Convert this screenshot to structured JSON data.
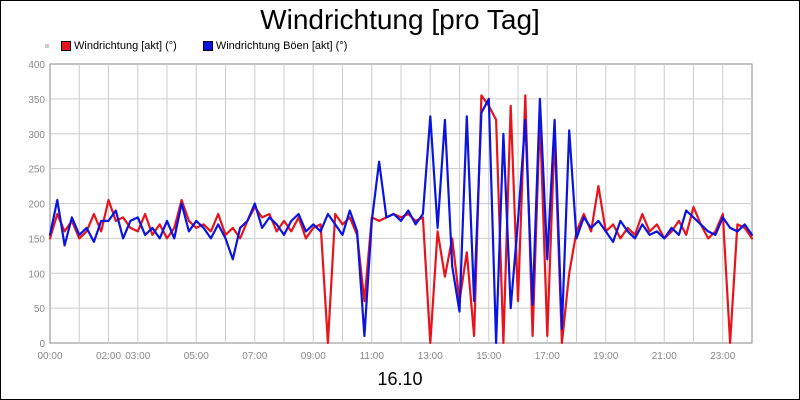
{
  "title": "Windrichtung [pro Tag]",
  "date_label": "16.10",
  "legend": [
    {
      "label": "Windrichtung [akt] (°)",
      "color": "#e8141c"
    },
    {
      "label": "Windrichtung Böen [akt] (°)",
      "color": "#0a14e0"
    }
  ],
  "chart_data": {
    "type": "line",
    "title": "Windrichtung [pro Tag]",
    "xlabel": "",
    "ylabel": "",
    "ylim": [
      0,
      400
    ],
    "yticks": [
      0,
      50,
      100,
      150,
      200,
      250,
      300,
      350,
      400
    ],
    "xlim_hours": [
      0,
      24
    ],
    "xticks": [
      {
        "h": 0,
        "label": "00:00"
      },
      {
        "h": 2,
        "label": "02:00"
      },
      {
        "h": 3,
        "label": "03:00"
      },
      {
        "h": 5,
        "label": "05:00"
      },
      {
        "h": 7,
        "label": "07:00"
      },
      {
        "h": 9,
        "label": "09:00"
      },
      {
        "h": 11,
        "label": "11:00"
      },
      {
        "h": 13,
        "label": "13:00"
      },
      {
        "h": 15,
        "label": "15:00"
      },
      {
        "h": 17,
        "label": "17:00"
      },
      {
        "h": 19,
        "label": "19:00"
      },
      {
        "h": 21,
        "label": "21:00"
      },
      {
        "h": 23,
        "label": "23:00"
      }
    ],
    "grid": true,
    "legend_position": "top-left",
    "series": [
      {
        "name": "Windrichtung [akt] (°)",
        "color": "#e8141c",
        "points": [
          [
            0.0,
            150
          ],
          [
            0.25,
            185
          ],
          [
            0.5,
            160
          ],
          [
            0.75,
            175
          ],
          [
            1.0,
            150
          ],
          [
            1.25,
            160
          ],
          [
            1.5,
            185
          ],
          [
            1.75,
            160
          ],
          [
            2.0,
            205
          ],
          [
            2.25,
            175
          ],
          [
            2.5,
            180
          ],
          [
            2.75,
            165
          ],
          [
            3.0,
            160
          ],
          [
            3.25,
            185
          ],
          [
            3.5,
            155
          ],
          [
            3.75,
            170
          ],
          [
            4.0,
            150
          ],
          [
            4.25,
            165
          ],
          [
            4.5,
            205
          ],
          [
            4.75,
            175
          ],
          [
            5.0,
            165
          ],
          [
            5.25,
            170
          ],
          [
            5.5,
            160
          ],
          [
            5.75,
            185
          ],
          [
            6.0,
            155
          ],
          [
            6.25,
            165
          ],
          [
            6.5,
            150
          ],
          [
            6.75,
            175
          ],
          [
            7.0,
            195
          ],
          [
            7.25,
            180
          ],
          [
            7.5,
            185
          ],
          [
            7.75,
            160
          ],
          [
            8.0,
            175
          ],
          [
            8.25,
            160
          ],
          [
            8.5,
            180
          ],
          [
            8.75,
            150
          ],
          [
            9.0,
            165
          ],
          [
            9.25,
            170
          ],
          [
            9.5,
            0
          ],
          [
            9.75,
            185
          ],
          [
            10.0,
            170
          ],
          [
            10.25,
            180
          ],
          [
            10.5,
            155
          ],
          [
            10.75,
            60
          ],
          [
            11.0,
            180
          ],
          [
            11.25,
            175
          ],
          [
            11.5,
            180
          ],
          [
            11.75,
            185
          ],
          [
            12.0,
            180
          ],
          [
            12.25,
            185
          ],
          [
            12.5,
            175
          ],
          [
            12.75,
            180
          ],
          [
            13.0,
            0
          ],
          [
            13.25,
            160
          ],
          [
            13.5,
            95
          ],
          [
            13.75,
            150
          ],
          [
            14.0,
            60
          ],
          [
            14.25,
            130
          ],
          [
            14.5,
            10
          ],
          [
            14.75,
            355
          ],
          [
            15.0,
            340
          ],
          [
            15.25,
            320
          ],
          [
            15.5,
            0
          ],
          [
            15.75,
            340
          ],
          [
            16.0,
            60
          ],
          [
            16.25,
            355
          ],
          [
            16.5,
            10
          ],
          [
            16.75,
            325
          ],
          [
            17.0,
            10
          ],
          [
            17.25,
            300
          ],
          [
            17.5,
            0
          ],
          [
            17.75,
            100
          ],
          [
            18.0,
            160
          ],
          [
            18.25,
            185
          ],
          [
            18.5,
            160
          ],
          [
            18.75,
            225
          ],
          [
            19.0,
            160
          ],
          [
            19.25,
            170
          ],
          [
            19.5,
            150
          ],
          [
            19.75,
            165
          ],
          [
            20.0,
            155
          ],
          [
            20.25,
            185
          ],
          [
            20.5,
            160
          ],
          [
            20.75,
            170
          ],
          [
            21.0,
            150
          ],
          [
            21.25,
            160
          ],
          [
            21.5,
            175
          ],
          [
            21.75,
            155
          ],
          [
            22.0,
            195
          ],
          [
            22.25,
            170
          ],
          [
            22.5,
            150
          ],
          [
            22.75,
            160
          ],
          [
            23.0,
            185
          ],
          [
            23.25,
            0
          ],
          [
            23.5,
            170
          ],
          [
            23.75,
            165
          ],
          [
            24.0,
            150
          ]
        ]
      },
      {
        "name": "Windrichtung Böen [akt] (°)",
        "color": "#0a14e0",
        "points": [
          [
            0.0,
            155
          ],
          [
            0.25,
            205
          ],
          [
            0.5,
            140
          ],
          [
            0.75,
            180
          ],
          [
            1.0,
            155
          ],
          [
            1.25,
            165
          ],
          [
            1.5,
            145
          ],
          [
            1.75,
            175
          ],
          [
            2.0,
            175
          ],
          [
            2.25,
            190
          ],
          [
            2.5,
            150
          ],
          [
            2.75,
            175
          ],
          [
            3.0,
            180
          ],
          [
            3.25,
            155
          ],
          [
            3.5,
            165
          ],
          [
            3.75,
            150
          ],
          [
            4.0,
            175
          ],
          [
            4.25,
            150
          ],
          [
            4.5,
            200
          ],
          [
            4.75,
            160
          ],
          [
            5.0,
            175
          ],
          [
            5.25,
            165
          ],
          [
            5.5,
            150
          ],
          [
            5.75,
            170
          ],
          [
            6.0,
            150
          ],
          [
            6.25,
            120
          ],
          [
            6.5,
            165
          ],
          [
            6.75,
            175
          ],
          [
            7.0,
            200
          ],
          [
            7.25,
            165
          ],
          [
            7.5,
            180
          ],
          [
            7.75,
            170
          ],
          [
            8.0,
            155
          ],
          [
            8.25,
            175
          ],
          [
            8.5,
            185
          ],
          [
            8.75,
            160
          ],
          [
            9.0,
            170
          ],
          [
            9.25,
            160
          ],
          [
            9.5,
            185
          ],
          [
            9.75,
            170
          ],
          [
            10.0,
            155
          ],
          [
            10.25,
            190
          ],
          [
            10.5,
            160
          ],
          [
            10.75,
            10
          ],
          [
            11.0,
            175
          ],
          [
            11.25,
            260
          ],
          [
            11.5,
            180
          ],
          [
            11.75,
            185
          ],
          [
            12.0,
            175
          ],
          [
            12.25,
            190
          ],
          [
            12.5,
            170
          ],
          [
            12.75,
            185
          ],
          [
            13.0,
            325
          ],
          [
            13.25,
            165
          ],
          [
            13.5,
            320
          ],
          [
            13.75,
            110
          ],
          [
            14.0,
            45
          ],
          [
            14.25,
            325
          ],
          [
            14.5,
            60
          ],
          [
            14.75,
            330
          ],
          [
            15.0,
            350
          ],
          [
            15.25,
            0
          ],
          [
            15.5,
            300
          ],
          [
            15.75,
            50
          ],
          [
            16.0,
            175
          ],
          [
            16.25,
            320
          ],
          [
            16.5,
            55
          ],
          [
            16.75,
            350
          ],
          [
            17.0,
            120
          ],
          [
            17.25,
            320
          ],
          [
            17.5,
            20
          ],
          [
            17.75,
            305
          ],
          [
            18.0,
            150
          ],
          [
            18.25,
            180
          ],
          [
            18.5,
            165
          ],
          [
            18.75,
            175
          ],
          [
            19.0,
            160
          ],
          [
            19.25,
            145
          ],
          [
            19.5,
            175
          ],
          [
            19.75,
            160
          ],
          [
            20.0,
            150
          ],
          [
            20.25,
            170
          ],
          [
            20.5,
            155
          ],
          [
            20.75,
            160
          ],
          [
            21.0,
            150
          ],
          [
            21.25,
            165
          ],
          [
            21.5,
            155
          ],
          [
            21.75,
            190
          ],
          [
            22.0,
            180
          ],
          [
            22.25,
            170
          ],
          [
            22.5,
            160
          ],
          [
            22.75,
            155
          ],
          [
            23.0,
            180
          ],
          [
            23.25,
            165
          ],
          [
            23.5,
            160
          ],
          [
            23.75,
            170
          ],
          [
            24.0,
            155
          ]
        ]
      }
    ]
  }
}
